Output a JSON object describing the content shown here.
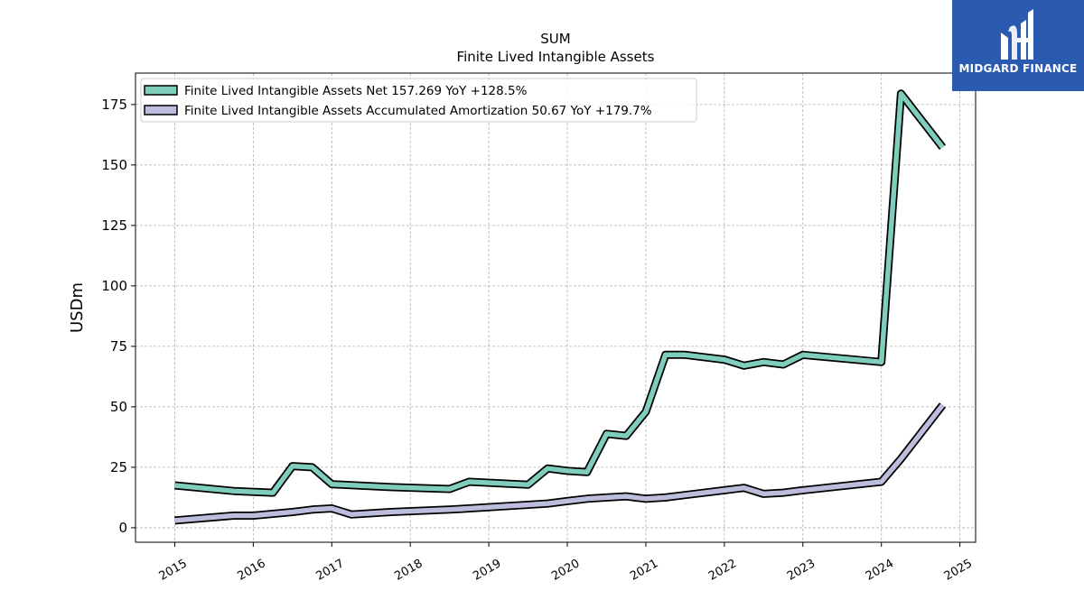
{
  "chart_data": {
    "type": "line",
    "title": "SUM",
    "subtitle": "Finite Lived Intangible Assets",
    "ylabel": "USDm",
    "xlabel": "",
    "xlim": [
      2014.5,
      2025.2
    ],
    "ylim": [
      -6,
      188
    ],
    "yticks": [
      0,
      25,
      50,
      75,
      100,
      125,
      150,
      175
    ],
    "xticks": [
      2015,
      2016,
      2017,
      2018,
      2019,
      2020,
      2021,
      2022,
      2023,
      2024,
      2025
    ],
    "grid": true,
    "legend_position": "top-left",
    "series": [
      {
        "name": "Finite Lived Intangible Assets Net",
        "legend_label": "Finite Lived Intangible Assets Net  157.269 YoY +128.5%",
        "color": "#7fcdbb",
        "x": [
          2015.0,
          2015.75,
          2016.25,
          2016.5,
          2016.75,
          2017.0,
          2017.75,
          2018.5,
          2018.75,
          2019.5,
          2019.75,
          2020.0,
          2020.25,
          2020.5,
          2020.75,
          2021.0,
          2021.25,
          2021.5,
          2022.0,
          2022.25,
          2022.5,
          2022.75,
          2023.0,
          2024.0,
          2024.25,
          2024.78
        ],
        "values": [
          17.5,
          15.2,
          14.5,
          25.5,
          25.0,
          18.0,
          16.8,
          16.0,
          19.0,
          17.8,
          24.5,
          23.5,
          23.0,
          38.8,
          38.0,
          48.0,
          71.5,
          71.5,
          69.5,
          67.0,
          68.5,
          67.5,
          71.5,
          68.5,
          179.5,
          157.3
        ]
      },
      {
        "name": "Finite Lived Intangible Assets Accumulated Amortization",
        "legend_label": "Finite Lived Intangible Assets Accumulated Amortization  50.67 YoY +179.7%",
        "color": "#bcbddc",
        "x": [
          2015.0,
          2015.75,
          2016.0,
          2016.5,
          2016.75,
          2017.0,
          2017.25,
          2017.75,
          2018.5,
          2018.75,
          2019.5,
          2019.75,
          2020.0,
          2020.25,
          2020.5,
          2020.75,
          2021.0,
          2021.25,
          2021.5,
          2022.0,
          2022.25,
          2022.5,
          2022.75,
          2023.0,
          2024.0,
          2024.25,
          2024.78
        ],
        "values": [
          3.0,
          5.0,
          5.0,
          6.5,
          7.5,
          8.0,
          5.5,
          6.5,
          7.5,
          8.0,
          9.5,
          10.0,
          11.0,
          12.0,
          12.5,
          13.0,
          12.0,
          12.5,
          13.5,
          15.5,
          16.5,
          14.0,
          14.5,
          15.5,
          19.0,
          28.5,
          50.7
        ]
      }
    ]
  },
  "logo": {
    "text": "MIDGARD FINANCE",
    "background": "#2b5bb0"
  }
}
